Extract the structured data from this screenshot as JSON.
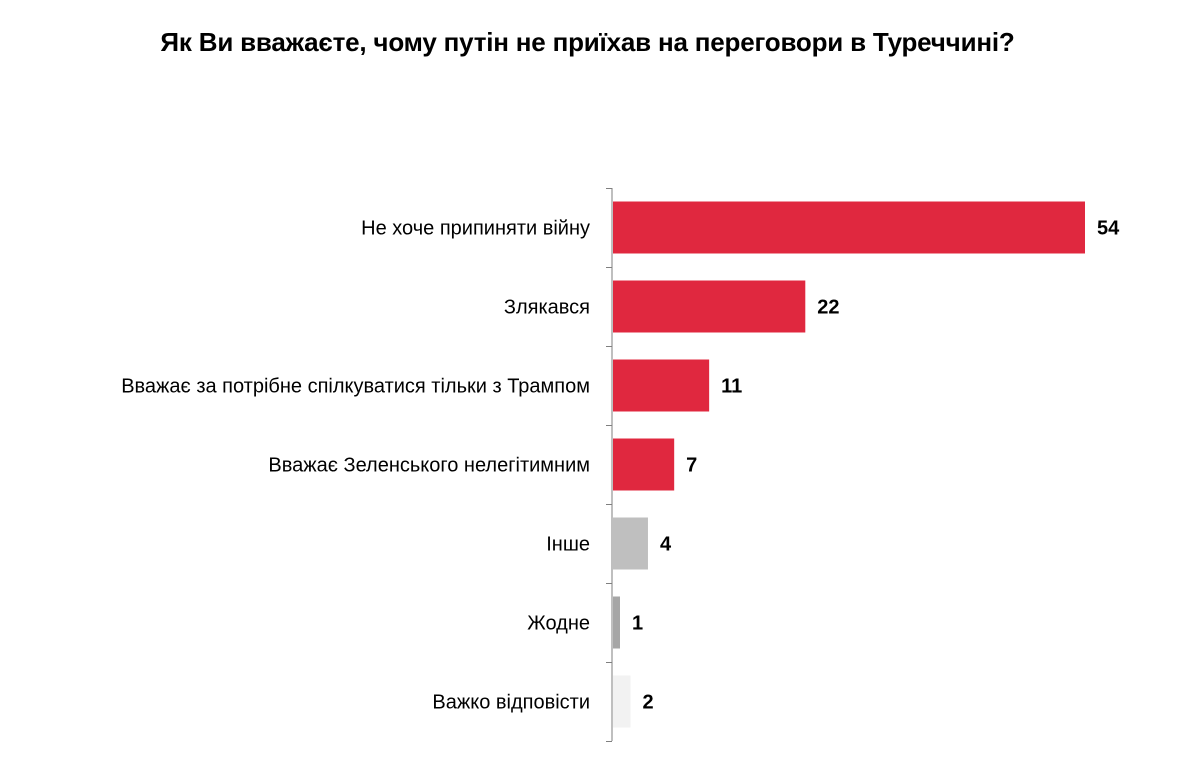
{
  "chart_data": {
    "type": "bar",
    "orientation": "horizontal",
    "title": "Як Ви вважаєте, чому путін не приїхав на переговори в Туреччині?",
    "categories": [
      "Не хоче припиняти війну",
      "Злякався",
      "Вважає за потрібне спілкуватися тільки з Трампом",
      "Вважає Зеленського нелегітимним",
      "Інше",
      "Жодне",
      "Важко відповісти"
    ],
    "values": [
      54,
      22,
      11,
      7,
      4,
      1,
      2
    ],
    "value_labels": [
      "54",
      "22",
      "11",
      "7",
      "4",
      "1",
      "2"
    ],
    "bar_colors": [
      "#e0283f",
      "#e0283f",
      "#e0283f",
      "#e0283f",
      "#bfbfbf",
      "#a6a6a6",
      "#f2f2f2"
    ],
    "xlim": [
      0,
      54
    ],
    "grid": false,
    "legend": "none",
    "xlabel": "",
    "ylabel": ""
  }
}
